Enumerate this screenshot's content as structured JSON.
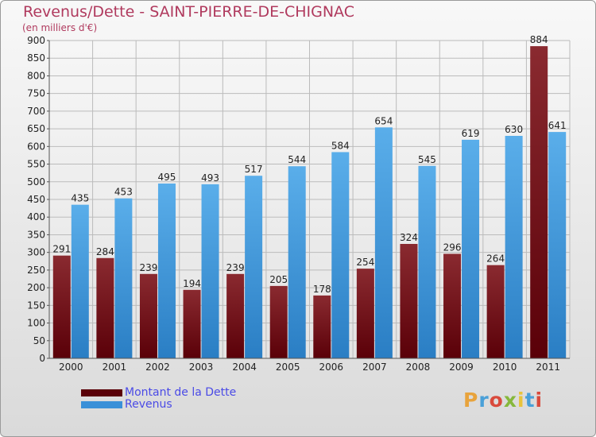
{
  "title": "Revenus/Dette - SAINT-PIERRE-DE-CHIGNAC",
  "subtitle": "(en milliers d'€)",
  "logo": {
    "text": "Proxiti",
    "colors": [
      "#e8a33c",
      "#4aa0d8",
      "#d94a3c",
      "#86b83c",
      "#e8c33c",
      "#4aa0d8",
      "#d94a3c"
    ]
  },
  "colors": {
    "debt": "#7a1a1e",
    "revenue": "#4aa0e0",
    "title": "#b03a5e",
    "legend_text": "#4a4ae6"
  },
  "chart_data": {
    "type": "bar",
    "title": "Revenus/Dette - SAINT-PIERRE-DE-CHIGNAC",
    "ylabel": "(en milliers d'€)",
    "xlabel": "",
    "ylim": [
      0,
      900
    ],
    "ytick_step": 50,
    "grid": true,
    "categories": [
      "2000",
      "2001",
      "2002",
      "2003",
      "2004",
      "2005",
      "2006",
      "2007",
      "2008",
      "2009",
      "2010",
      "2011"
    ],
    "series": [
      {
        "name": "Montant de la Dette",
        "values": [
          291,
          284,
          239,
          194,
          239,
          205,
          178,
          254,
          324,
          296,
          264,
          884
        ]
      },
      {
        "name": "Revenus",
        "values": [
          435,
          453,
          495,
          493,
          517,
          544,
          584,
          654,
          545,
          619,
          630,
          641
        ]
      }
    ],
    "legend": {
      "placement": "bottom-left",
      "entries": [
        "Montant de la Dette",
        "Revenus"
      ]
    }
  }
}
